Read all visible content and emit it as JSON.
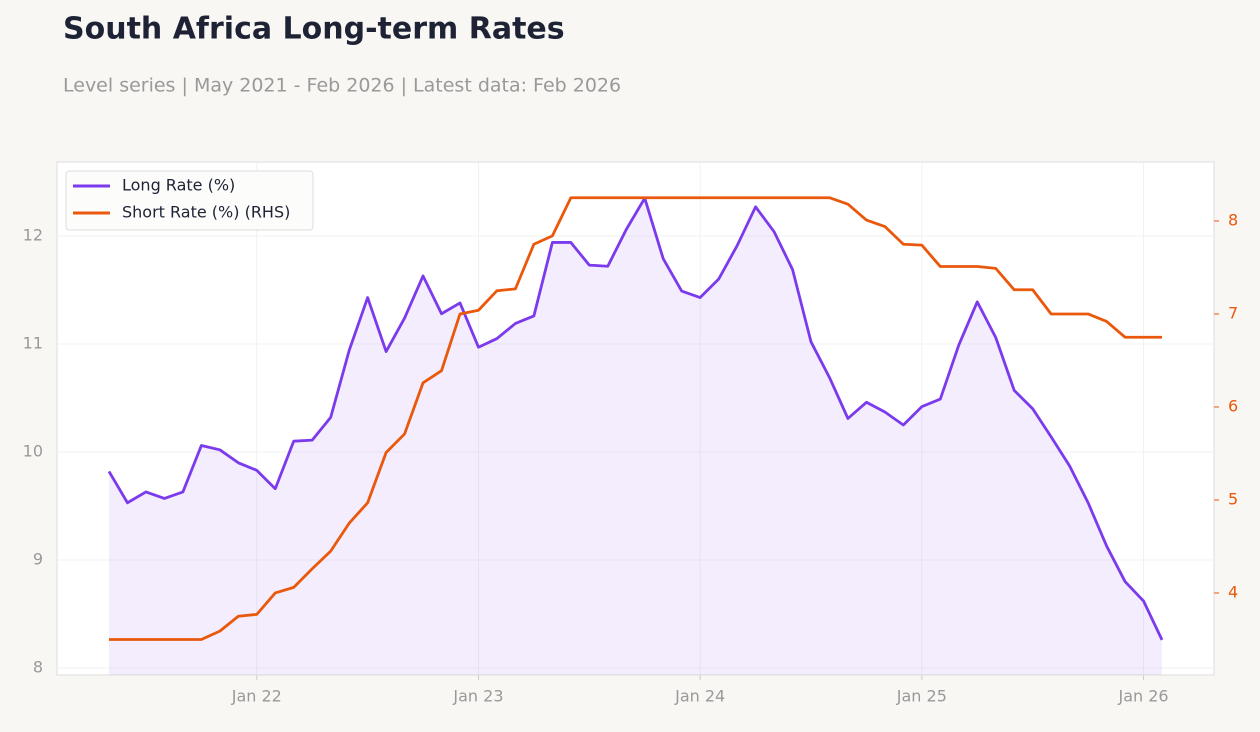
{
  "chart_data": {
    "type": "line",
    "title": "South Africa Long-term Rates",
    "subtitle": "Level series | May 2021 - Feb 2026 | Latest data: Feb 2026",
    "x": [
      "2021-05",
      "2021-06",
      "2021-07",
      "2021-08",
      "2021-09",
      "2021-10",
      "2021-11",
      "2021-12",
      "2022-01",
      "2022-02",
      "2022-03",
      "2022-04",
      "2022-05",
      "2022-06",
      "2022-07",
      "2022-08",
      "2022-09",
      "2022-10",
      "2022-11",
      "2022-12",
      "2023-01",
      "2023-02",
      "2023-03",
      "2023-04",
      "2023-05",
      "2023-06",
      "2023-07",
      "2023-08",
      "2023-09",
      "2023-10",
      "2023-11",
      "2023-12",
      "2024-01",
      "2024-02",
      "2024-03",
      "2024-04",
      "2024-05",
      "2024-06",
      "2024-07",
      "2024-08",
      "2024-09",
      "2024-10",
      "2024-11",
      "2024-12",
      "2025-01",
      "2025-02",
      "2025-03",
      "2025-04",
      "2025-05",
      "2025-06",
      "2025-07",
      "2025-08",
      "2025-09",
      "2025-10",
      "2025-11",
      "2025-12",
      "2026-01",
      "2026-02"
    ],
    "xticks": [
      {
        "value": "2022-01",
        "label": "Jan 22"
      },
      {
        "value": "2023-01",
        "label": "Jan 23"
      },
      {
        "value": "2024-01",
        "label": "Jan 24"
      },
      {
        "value": "2025-01",
        "label": "Jan 25"
      },
      {
        "value": "2026-01",
        "label": "Jan 26"
      }
    ],
    "series": [
      {
        "name": "Long Rate (%)",
        "color": "#7c3aed",
        "fill": true,
        "values": [
          9.82,
          9.53,
          9.63,
          9.57,
          9.63,
          10.06,
          10.02,
          9.9,
          9.83,
          9.66,
          10.1,
          10.11,
          10.32,
          10.94,
          11.43,
          10.93,
          11.24,
          11.63,
          11.28,
          11.38,
          10.97,
          11.05,
          11.19,
          11.26,
          11.94,
          11.94,
          11.73,
          11.72,
          12.06,
          12.35,
          11.79,
          11.49,
          11.43,
          11.6,
          11.91,
          12.27,
          12.04,
          11.69,
          11.02,
          10.69,
          10.31,
          10.46,
          10.37,
          10.25,
          10.42,
          10.49,
          10.99,
          11.39,
          11.06,
          10.57,
          10.4,
          10.14,
          9.87,
          9.53,
          9.13,
          8.8,
          8.62,
          8.26
        ]
      },
      {
        "name": "Short Rate (%) (RHS)",
        "color": "#ea580c",
        "axis": "y2",
        "values": [
          3.5,
          3.5,
          3.5,
          3.5,
          3.5,
          3.5,
          3.59,
          3.75,
          3.77,
          4.0,
          4.06,
          4.26,
          4.45,
          4.75,
          4.97,
          5.51,
          5.71,
          6.26,
          6.39,
          7.0,
          7.04,
          7.25,
          7.27,
          7.75,
          7.84,
          8.25,
          8.25,
          8.25,
          8.25,
          8.25,
          8.25,
          8.25,
          8.25,
          8.25,
          8.25,
          8.25,
          8.25,
          8.25,
          8.25,
          8.25,
          8.18,
          8.01,
          7.94,
          7.75,
          7.74,
          7.51,
          7.51,
          7.51,
          7.49,
          7.26,
          7.26,
          7.0,
          7.0,
          7.0,
          6.92,
          6.75,
          6.75,
          6.75
        ]
      }
    ],
    "ylim": [
      7.935,
      12.685
    ],
    "yticks": [
      8,
      9,
      10,
      11,
      12
    ],
    "y2lim": [
      3.118,
      8.634
    ],
    "y2ticks": [
      4,
      5,
      6,
      7,
      8
    ],
    "grid": true,
    "legend": "upper left"
  }
}
